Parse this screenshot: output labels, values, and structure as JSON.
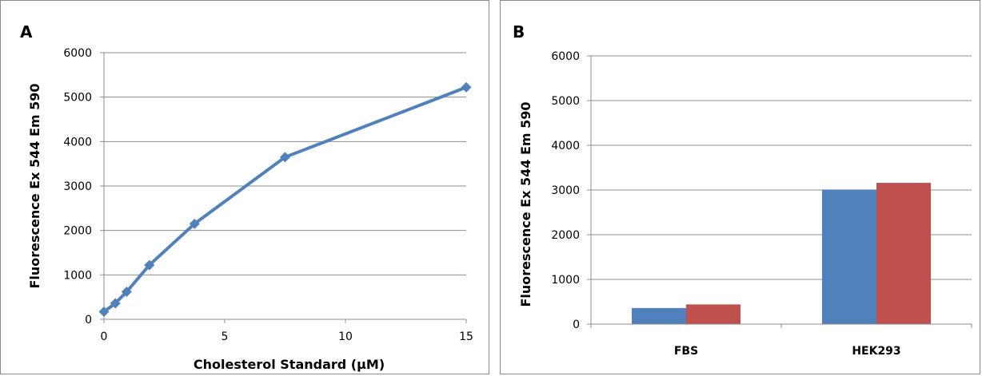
{
  "chart_data": [
    {
      "panel": "A",
      "type": "line",
      "xlabel": "Cholesterol Standard (µM)",
      "ylabel": "Fluorescence Ex 544 Em 590",
      "xlim": [
        0,
        15
      ],
      "ylim": [
        0,
        6000
      ],
      "x_ticks": [
        0,
        5,
        10,
        15
      ],
      "y_ticks": [
        0,
        1000,
        2000,
        3000,
        4000,
        5000,
        6000
      ],
      "grid": "horizontal",
      "legend": "none",
      "series": [
        {
          "color": "#4f81bd",
          "marker": "diamond",
          "x": [
            0,
            0.47,
            0.94,
            1.88,
            3.75,
            7.5,
            15
          ],
          "y": [
            170,
            360,
            620,
            1220,
            2150,
            3650,
            5220
          ]
        }
      ]
    },
    {
      "panel": "B",
      "type": "bar",
      "ylabel": "Fluorescence Ex 544 Em 590",
      "categories": [
        "FBS",
        "HEK293"
      ],
      "ylim": [
        0,
        6000
      ],
      "y_ticks": [
        0,
        1000,
        2000,
        3000,
        4000,
        5000,
        6000
      ],
      "grid": "horizontal",
      "legend": "none",
      "series": [
        {
          "color": "#4f81bd",
          "values": [
            360,
            3010
          ]
        },
        {
          "color": "#c0504d",
          "values": [
            440,
            3160
          ]
        }
      ]
    }
  ]
}
